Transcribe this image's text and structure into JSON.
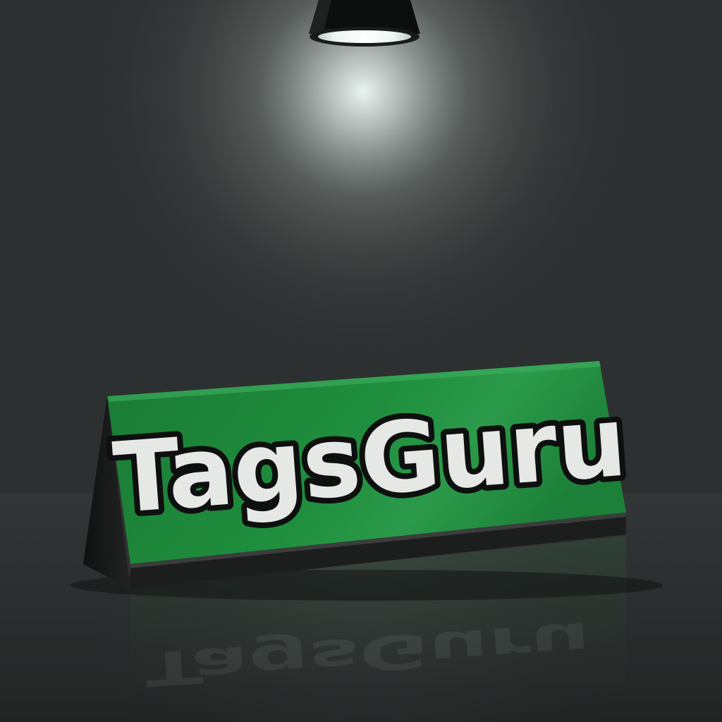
{
  "sign": {
    "text": "TagsGuru"
  },
  "colors": {
    "wall": "#2d3030",
    "floor": "#2a2d2d",
    "sign_green": "#1f8a3c",
    "sign_green_dark": "#156b2c",
    "sign_base": "#1c1d1d",
    "letter_fill": "#e6e8e6",
    "letter_outline": "#0e0f0f",
    "light_glow": "#f4fffb"
  },
  "icons": {
    "lamp": "spotlight-icon"
  }
}
